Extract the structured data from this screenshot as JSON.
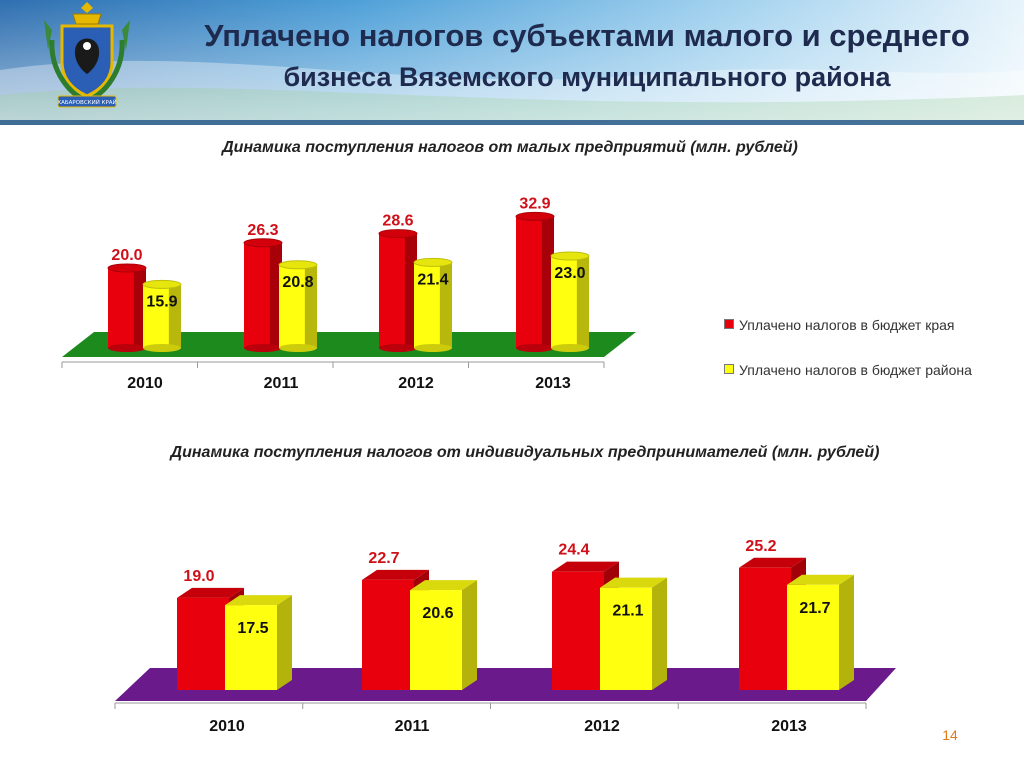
{
  "header": {
    "title_line1": "Уплачено налогов субъектами малого и среднего",
    "title_line2": "бизнеса Вяземского муниципального района",
    "emblem_text": "ХАБАРОВСКИЙ КРАЙ"
  },
  "chart_data": [
    {
      "type": "bar",
      "title": "Динамика поступления налогов от малых предприятий (млн. рублей)",
      "categories": [
        "2010",
        "2011",
        "2012",
        "2013"
      ],
      "series": [
        {
          "name": "Уплачено налогов в бюджет края",
          "values": [
            20.0,
            26.3,
            28.6,
            32.9
          ],
          "color": "#e8000c",
          "label_color": "#d01018"
        },
        {
          "name": "Уплачено налогов в бюджет района",
          "values": [
            15.9,
            20.8,
            21.4,
            23.0
          ],
          "color": "#ffff10",
          "label_color": "#111111"
        }
      ],
      "floor_color": "#1d8a1d",
      "legend": "right",
      "grid": false
    },
    {
      "type": "bar",
      "title": "Динамика поступления налогов от индивидуальных предпринимателей (млн. рублей)",
      "categories": [
        "2010",
        "2011",
        "2012",
        "2013"
      ],
      "series": [
        {
          "values": [
            19.0,
            22.7,
            24.4,
            25.2
          ],
          "color": "#e8000c",
          "label_color": "#d01018"
        },
        {
          "values": [
            17.5,
            20.6,
            21.1,
            21.7
          ],
          "color": "#ffff10",
          "label_color": "#111111"
        }
      ],
      "floor_color": "#6a1a8a",
      "grid": false
    }
  ],
  "page_number": "14"
}
